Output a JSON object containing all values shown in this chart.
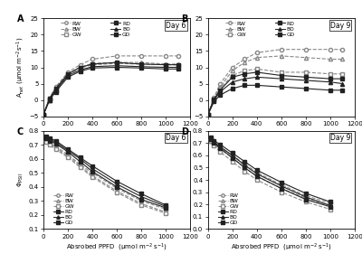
{
  "ppfd_A": [
    0,
    50,
    100,
    200,
    300,
    400,
    600,
    800,
    1000,
    1100
  ],
  "ppfd_C": [
    25,
    50,
    100,
    200,
    300,
    400,
    600,
    800,
    1000
  ],
  "A_day6": {
    "RW": [
      -4.5,
      0.5,
      4.0,
      8.5,
      10.8,
      12.5,
      13.5,
      13.5,
      13.5,
      13.5
    ],
    "BW": [
      -4.5,
      0.5,
      3.5,
      8.0,
      10.0,
      11.2,
      11.5,
      11.5,
      11.0,
      11.0
    ],
    "GW": [
      -4.5,
      0.5,
      3.0,
      7.8,
      9.8,
      10.8,
      11.2,
      11.0,
      10.8,
      10.8
    ],
    "RD": [
      -4.5,
      0.5,
      3.5,
      8.0,
      10.0,
      11.0,
      11.5,
      11.0,
      10.8,
      10.8
    ],
    "BD": [
      -4.5,
      0.0,
      3.0,
      7.5,
      9.2,
      10.2,
      10.5,
      10.2,
      10.0,
      10.0
    ],
    "GD": [
      -4.5,
      0.0,
      2.5,
      7.0,
      8.8,
      9.8,
      10.0,
      9.8,
      9.5,
      9.5
    ]
  },
  "A_day9": {
    "RW": [
      -4.5,
      0.8,
      5.0,
      10.0,
      12.5,
      14.5,
      15.5,
      15.5,
      15.5,
      15.5
    ],
    "BW": [
      -4.5,
      0.5,
      4.0,
      9.0,
      11.5,
      13.0,
      13.5,
      13.0,
      12.5,
      12.5
    ],
    "GW": [
      -4.5,
      0.3,
      3.5,
      7.5,
      9.0,
      9.5,
      8.5,
      8.5,
      8.0,
      8.0
    ],
    "RD": [
      -4.5,
      0.3,
      3.0,
      7.0,
      8.0,
      8.5,
      7.5,
      7.0,
      6.5,
      6.5
    ],
    "BD": [
      -4.5,
      0.0,
      2.5,
      5.5,
      6.5,
      7.0,
      6.5,
      6.0,
      5.5,
      5.0
    ],
    "GD": [
      -4.5,
      -0.5,
      1.5,
      3.5,
      4.5,
      4.5,
      4.0,
      3.5,
      3.0,
      3.0
    ]
  },
  "phi_day6": {
    "RW": [
      0.73,
      0.71,
      0.69,
      0.63,
      0.56,
      0.5,
      0.39,
      0.3,
      0.24
    ],
    "BW": [
      0.73,
      0.71,
      0.68,
      0.62,
      0.55,
      0.48,
      0.37,
      0.28,
      0.22
    ],
    "GW": [
      0.72,
      0.7,
      0.67,
      0.61,
      0.54,
      0.47,
      0.36,
      0.27,
      0.21
    ],
    "RD": [
      0.75,
      0.73,
      0.71,
      0.65,
      0.58,
      0.51,
      0.4,
      0.31,
      0.25
    ],
    "BD": [
      0.76,
      0.74,
      0.72,
      0.66,
      0.6,
      0.53,
      0.42,
      0.33,
      0.26
    ],
    "GD": [
      0.76,
      0.75,
      0.73,
      0.67,
      0.61,
      0.55,
      0.44,
      0.35,
      0.27
    ]
  },
  "phi_day9": {
    "RW": [
      0.73,
      0.7,
      0.67,
      0.6,
      0.53,
      0.46,
      0.36,
      0.27,
      0.21
    ],
    "BW": [
      0.72,
      0.69,
      0.65,
      0.58,
      0.5,
      0.43,
      0.33,
      0.25,
      0.19
    ],
    "GW": [
      0.72,
      0.68,
      0.63,
      0.55,
      0.47,
      0.4,
      0.3,
      0.22,
      0.16
    ],
    "RD": [
      0.73,
      0.7,
      0.66,
      0.58,
      0.5,
      0.43,
      0.33,
      0.24,
      0.18
    ],
    "BD": [
      0.74,
      0.71,
      0.67,
      0.6,
      0.52,
      0.45,
      0.35,
      0.26,
      0.19
    ],
    "GD": [
      0.75,
      0.72,
      0.69,
      0.62,
      0.55,
      0.48,
      0.38,
      0.29,
      0.22
    ]
  },
  "A_ylim": [
    -5,
    25
  ],
  "A_yticks": [
    -5,
    0,
    5,
    10,
    15,
    20,
    25
  ],
  "phi_C_ylim": [
    0.1,
    0.8
  ],
  "phi_C_yticks": [
    0.1,
    0.2,
    0.3,
    0.4,
    0.5,
    0.6,
    0.7,
    0.8
  ],
  "phi_D_ylim": [
    0.0,
    0.8
  ],
  "phi_D_yticks": [
    0.0,
    0.1,
    0.2,
    0.3,
    0.4,
    0.5,
    0.6,
    0.7,
    0.8
  ],
  "xlim": [
    0,
    1200
  ],
  "xticks": [
    0,
    200,
    400,
    600,
    800,
    1000,
    1200
  ],
  "A_ylabel": "A$_{net}$ (μmol m$^{-2}$s$^{-1}$)",
  "phi_ylabel": "Φ$_{PSII}$",
  "xlabel": "Absrobed PPFD  (μmol m$^{-2}$ s$^{-1}$)",
  "panel_labels": [
    "A",
    "B",
    "C",
    "D"
  ],
  "day_labels": [
    "Day 6",
    "Day 9",
    "Day 6",
    "Day 9"
  ],
  "color_W": "#888888",
  "color_D": "#222222",
  "ms": 3.0,
  "lw": 0.8
}
